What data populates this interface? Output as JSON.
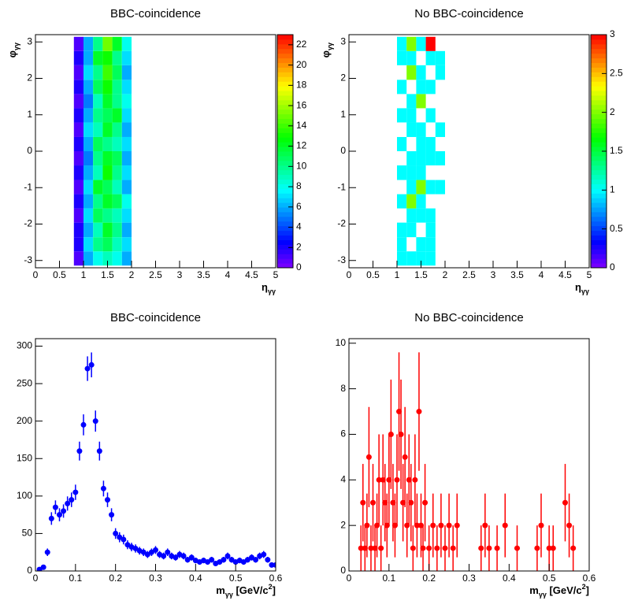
{
  "chart_data": [
    {
      "type": "heatmap",
      "title": "BBC-coincidence",
      "x_label": [
        "η",
        "γγ"
      ],
      "y_label": [
        "φ",
        "γγ"
      ],
      "xlim": [
        0,
        5
      ],
      "xticks": [
        0,
        0.5,
        1,
        1.5,
        2,
        2.5,
        3,
        3.5,
        4,
        4.5,
        5
      ],
      "ylim": [
        -3.2,
        3.2
      ],
      "yticks": [
        -3,
        -2,
        -1,
        0,
        1,
        2,
        3
      ],
      "zlim": [
        0,
        23
      ],
      "zticks": [
        0,
        2,
        4,
        6,
        8,
        10,
        12,
        14,
        16,
        18,
        20,
        22
      ],
      "xbins": [
        0.8,
        1.0,
        1.2,
        1.4,
        1.6,
        1.8,
        2.0
      ],
      "ybins": [
        -3.14,
        -2.75,
        -2.36,
        -1.96,
        -1.57,
        -1.18,
        -0.79,
        -0.39,
        0,
        0.39,
        0.79,
        1.18,
        1.57,
        1.96,
        2.36,
        2.75,
        3.14
      ],
      "z": [
        [
          1,
          6,
          8,
          9,
          8,
          6
        ],
        [
          2,
          7,
          10,
          11,
          9,
          7
        ],
        [
          2,
          6,
          9,
          12,
          10,
          6
        ],
        [
          1,
          7,
          11,
          10,
          9,
          7
        ],
        [
          2,
          6,
          10,
          12,
          11,
          8
        ],
        [
          1,
          7,
          12,
          11,
          9,
          6
        ],
        [
          2,
          6,
          9,
          13,
          10,
          7
        ],
        [
          1,
          5,
          10,
          12,
          11,
          6
        ],
        [
          2,
          6,
          11,
          10,
          9,
          7
        ],
        [
          1,
          7,
          9,
          12,
          10,
          6
        ],
        [
          2,
          6,
          10,
          11,
          12,
          7
        ],
        [
          1,
          5,
          9,
          12,
          10,
          8
        ],
        [
          2,
          6,
          11,
          13,
          10,
          7
        ],
        [
          1,
          7,
          10,
          14,
          11,
          6
        ],
        [
          2,
          6,
          12,
          13,
          10,
          7
        ],
        [
          1,
          6,
          10,
          15,
          12,
          8
        ]
      ]
    },
    {
      "type": "heatmap",
      "title": "No BBC-coincidence",
      "x_label": [
        "η",
        "γγ"
      ],
      "y_label": [
        "φ",
        "γγ"
      ],
      "xlim": [
        0,
        5
      ],
      "xticks": [
        0,
        0.5,
        1,
        1.5,
        2,
        2.5,
        3,
        3.5,
        4,
        4.5,
        5
      ],
      "ylim": [
        -3.2,
        3.2
      ],
      "yticks": [
        -3,
        -2,
        -1,
        0,
        1,
        2,
        3
      ],
      "zlim": [
        0,
        3
      ],
      "zticks": [
        0,
        0.5,
        1,
        1.5,
        2,
        2.5,
        3
      ],
      "xbins": [
        0.8,
        1.0,
        1.2,
        1.4,
        1.6,
        1.8,
        2.0
      ],
      "ybins": [
        -3.14,
        -2.75,
        -2.36,
        -1.96,
        -1.57,
        -1.18,
        -0.79,
        -0.39,
        0,
        0.39,
        0.79,
        1.18,
        1.57,
        1.96,
        2.36,
        2.75,
        3.14
      ],
      "z": [
        [
          0,
          1,
          1,
          1,
          1,
          0
        ],
        [
          0,
          1,
          0,
          1,
          1,
          0
        ],
        [
          0,
          1,
          1,
          0,
          1,
          0
        ],
        [
          0,
          0,
          1,
          1,
          1,
          0
        ],
        [
          0,
          1,
          2,
          1,
          0,
          0
        ],
        [
          0,
          0,
          1,
          2,
          1,
          1
        ],
        [
          0,
          1,
          1,
          1,
          0,
          0
        ],
        [
          0,
          0,
          1,
          1,
          1,
          1
        ],
        [
          0,
          1,
          0,
          1,
          1,
          0
        ],
        [
          0,
          0,
          1,
          1,
          0,
          1
        ],
        [
          0,
          1,
          1,
          0,
          1,
          0
        ],
        [
          0,
          0,
          1,
          2,
          0,
          0
        ],
        [
          0,
          1,
          0,
          1,
          1,
          0
        ],
        [
          0,
          0,
          2,
          1,
          0,
          1
        ],
        [
          0,
          1,
          1,
          0,
          1,
          1
        ],
        [
          0,
          1,
          2,
          1,
          3,
          0
        ]
      ]
    },
    {
      "type": "errorbar",
      "title": "BBC-coincidence",
      "x_label": [
        "m",
        "γγ",
        " [GeV/c",
        "2",
        "]"
      ],
      "color": "#0000ff",
      "xlim": [
        0,
        0.6
      ],
      "xticks": [
        0,
        0.1,
        0.2,
        0.3,
        0.4,
        0.5,
        0.6
      ],
      "ylim": [
        0,
        310
      ],
      "yticks": [
        0,
        50,
        100,
        150,
        200,
        250,
        300
      ],
      "x": [
        0.01,
        0.02,
        0.03,
        0.04,
        0.05,
        0.06,
        0.07,
        0.08,
        0.09,
        0.1,
        0.11,
        0.12,
        0.13,
        0.14,
        0.15,
        0.16,
        0.17,
        0.18,
        0.19,
        0.2,
        0.21,
        0.22,
        0.23,
        0.24,
        0.25,
        0.26,
        0.27,
        0.28,
        0.29,
        0.3,
        0.31,
        0.32,
        0.33,
        0.34,
        0.35,
        0.36,
        0.37,
        0.38,
        0.39,
        0.4,
        0.41,
        0.42,
        0.43,
        0.44,
        0.45,
        0.46,
        0.47,
        0.48,
        0.49,
        0.5,
        0.51,
        0.52,
        0.53,
        0.54,
        0.55,
        0.56,
        0.57,
        0.58,
        0.59,
        0.6
      ],
      "values": [
        2,
        5,
        25,
        70,
        85,
        75,
        80,
        90,
        95,
        105,
        160,
        195,
        270,
        275,
        200,
        160,
        110,
        95,
        75,
        50,
        45,
        42,
        35,
        32,
        30,
        27,
        25,
        22,
        25,
        28,
        22,
        20,
        25,
        20,
        18,
        22,
        20,
        15,
        18,
        14,
        12,
        14,
        12,
        15,
        10,
        12,
        15,
        20,
        15,
        12,
        14,
        12,
        15,
        18,
        15,
        20,
        22,
        15,
        8,
        8
      ],
      "errors": [
        1.4,
        2.2,
        5,
        8.4,
        9.2,
        8.7,
        8.9,
        9.5,
        9.7,
        10.2,
        12.6,
        14,
        16.4,
        16.6,
        14.1,
        12.6,
        10.5,
        9.7,
        8.7,
        7.1,
        6.7,
        6.5,
        5.9,
        5.7,
        5.5,
        5.2,
        5,
        4.7,
        5,
        5.3,
        4.7,
        4.5,
        5,
        4.5,
        4.2,
        4.7,
        4.5,
        3.9,
        4.2,
        3.7,
        3.5,
        3.7,
        3.5,
        3.9,
        3.2,
        3.5,
        3.9,
        4.5,
        3.9,
        3.5,
        3.7,
        3.5,
        3.9,
        4.2,
        3.9,
        4.5,
        4.7,
        3.9,
        2.8,
        2.8
      ]
    },
    {
      "type": "errorbar",
      "title": "No BBC-coincidence",
      "x_label": [
        "m",
        "γγ",
        " [GeV/c",
        "2",
        "]"
      ],
      "color": "#ff0000",
      "xlim": [
        0,
        0.6
      ],
      "xticks": [
        0,
        0.1,
        0.2,
        0.3,
        0.4,
        0.5,
        0.6
      ],
      "ylim": [
        0,
        10.2
      ],
      "yticks": [
        0,
        2,
        4,
        6,
        8,
        10
      ],
      "x": [
        0.03,
        0.035,
        0.04,
        0.045,
        0.05,
        0.055,
        0.06,
        0.065,
        0.07,
        0.075,
        0.08,
        0.085,
        0.09,
        0.095,
        0.1,
        0.105,
        0.11,
        0.115,
        0.12,
        0.125,
        0.13,
        0.135,
        0.14,
        0.145,
        0.15,
        0.155,
        0.16,
        0.165,
        0.17,
        0.175,
        0.18,
        0.185,
        0.19,
        0.2,
        0.21,
        0.22,
        0.23,
        0.24,
        0.25,
        0.26,
        0.27,
        0.33,
        0.34,
        0.35,
        0.37,
        0.39,
        0.42,
        0.47,
        0.48,
        0.5,
        0.51,
        0.54,
        0.55,
        0.56
      ],
      "values": [
        1,
        3,
        1,
        2,
        5,
        1,
        3,
        1,
        2,
        4,
        1,
        4,
        3,
        2,
        4,
        6,
        3,
        2,
        4,
        7,
        6,
        3,
        5,
        2,
        4,
        3,
        1,
        4,
        2,
        7,
        2,
        1,
        3,
        1,
        2,
        1,
        2,
        1,
        2,
        1,
        2,
        1,
        2,
        1,
        1,
        2,
        1,
        1,
        2,
        1,
        1,
        3,
        2,
        1
      ],
      "errors": [
        1,
        1.7,
        1,
        1.4,
        2.2,
        1,
        1.7,
        1,
        1.4,
        2,
        1,
        2,
        1.7,
        1.4,
        2,
        2.4,
        1.7,
        1.4,
        2,
        2.6,
        2.4,
        1.7,
        2.2,
        1.4,
        2,
        1.7,
        1,
        2,
        1.4,
        2.6,
        1.4,
        1,
        1.7,
        1,
        1.4,
        1,
        1.4,
        1,
        1.4,
        1,
        1.4,
        1,
        1.4,
        1,
        1,
        1.4,
        1,
        1,
        1.4,
        1,
        1,
        1.7,
        1.4,
        1
      ]
    }
  ]
}
